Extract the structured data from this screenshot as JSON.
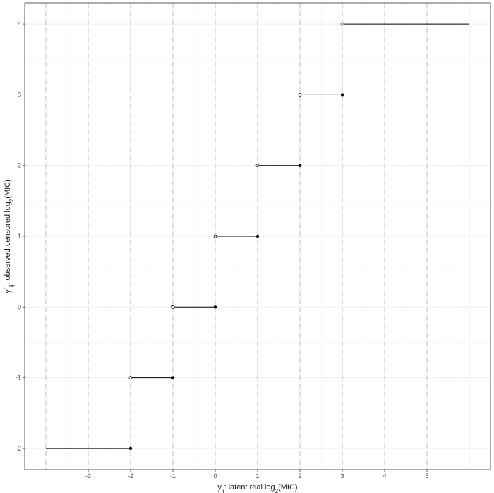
{
  "chart_data": {
    "type": "step",
    "x_label": {
      "base": "y",
      "sub": "ij",
      "text": ": latent real log",
      "sub2": "2",
      "tail": "(MIC)"
    },
    "y_label": {
      "base": "y",
      "sup": "*",
      "sub": "ij",
      "text": ": observed censored log",
      "sub2": "2",
      "tail": "(MIC)"
    },
    "xlim": [
      -4.5,
      6.5
    ],
    "ylim": [
      -2.3,
      4.3
    ],
    "x_ticks": [
      -3,
      -2,
      -1,
      0,
      1,
      2,
      3,
      4,
      5
    ],
    "x_tick_labels": [
      "-3",
      "-2",
      "-1",
      "0",
      "1",
      "2",
      "3",
      "4",
      "5"
    ],
    "y_ticks": [
      -2,
      -1,
      0,
      1,
      2,
      3,
      4
    ],
    "y_tick_labels": [
      "-2",
      "-1",
      "0",
      "1",
      "2",
      "3",
      "4"
    ],
    "dashed_vlines": [
      -4,
      -3,
      -2,
      -1,
      0,
      1,
      2,
      3,
      4,
      5
    ],
    "segments": [
      {
        "y": -2,
        "x_start": -4,
        "x_end": -2,
        "start_open": null,
        "end_closed": true
      },
      {
        "y": -1,
        "x_start": -2,
        "x_end": -1,
        "start_open": true,
        "end_closed": true
      },
      {
        "y": 0,
        "x_start": -1,
        "x_end": 0,
        "start_open": true,
        "end_closed": true
      },
      {
        "y": 1,
        "x_start": 0,
        "x_end": 1,
        "start_open": true,
        "end_closed": true
      },
      {
        "y": 2,
        "x_start": 1,
        "x_end": 2,
        "start_open": true,
        "end_closed": true
      },
      {
        "y": 3,
        "x_start": 2,
        "x_end": 3,
        "start_open": true,
        "end_closed": true
      },
      {
        "y": 4,
        "x_start": 3,
        "x_end": 6,
        "start_open": true,
        "end_closed": null
      }
    ],
    "grid": true,
    "legend": "none",
    "colors": {
      "line": "#000000",
      "dashed": "#bdbdbd",
      "grid_major": "#ebebeb",
      "grid_minor": "#f4f4f4",
      "panel_border": "#333333"
    }
  }
}
